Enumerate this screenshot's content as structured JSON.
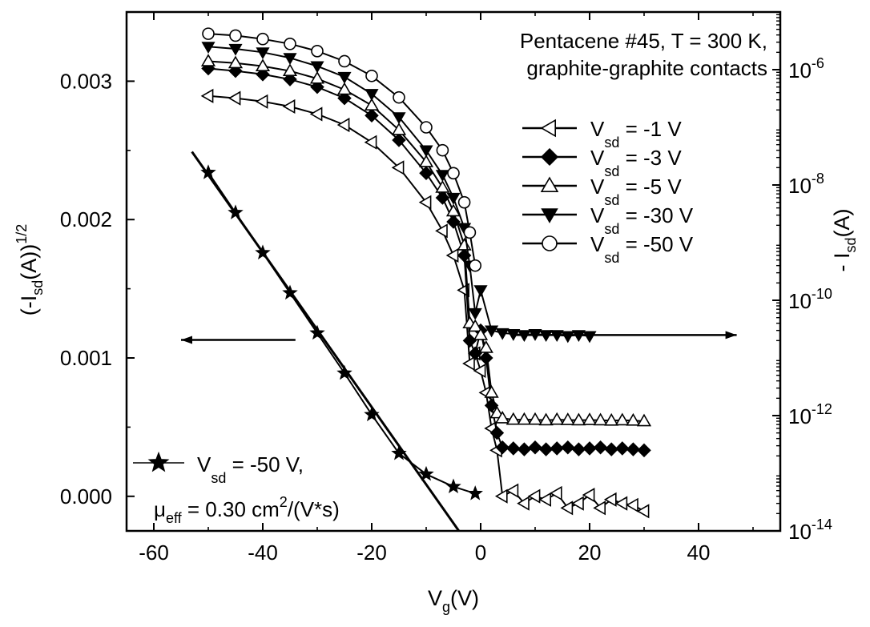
{
  "chart_data": {
    "type": "scatter",
    "annotation": [
      "Pentacene #45, T = 300 K,",
      "graphite-graphite contacts"
    ],
    "x_axis": {
      "label": "V",
      "label_sub": "g",
      "label_tail": "(V)",
      "range": [
        -65,
        55
      ],
      "ticks": [
        -60,
        -40,
        -20,
        0,
        20,
        40
      ],
      "tick_labels": [
        "-60",
        "-40",
        "-20",
        "0",
        "20",
        "40"
      ]
    },
    "y_left": {
      "label_pre": "(-I",
      "label_sub": "sd",
      "label_mid": "(A))",
      "label_sup": "1/2",
      "range": [
        -0.00025,
        0.0035
      ],
      "ticks": [
        0,
        0.001,
        0.002,
        0.003
      ],
      "tick_labels": [
        "0.000",
        "0.001",
        "0.002",
        "0.003"
      ]
    },
    "y_right": {
      "label_pre": "- I",
      "label_sub": "sd",
      "label_tail": "(A)",
      "scale": "log",
      "range_exp": [
        -14,
        -5
      ],
      "ticks_exp": [
        -14,
        -12,
        -10,
        -8,
        -6
      ],
      "tick_base": "10",
      "tick_exps": [
        "-14",
        "-12",
        "-10",
        "-8",
        "-6"
      ]
    },
    "legend_right": [
      {
        "pre": "V",
        "sub": "sd",
        "post": " = -1 V",
        "marker": "triangle-left-open"
      },
      {
        "pre": "V",
        "sub": "sd",
        "post": " = -3 V",
        "marker": "diamond-filled"
      },
      {
        "pre": "V",
        "sub": "sd",
        "post": " = -5 V",
        "marker": "triangle-up-open"
      },
      {
        "pre": "V",
        "sub": "sd",
        "post": " = -30 V",
        "marker": "triangle-down-filled"
      },
      {
        "pre": "V",
        "sub": "sd",
        "post": " = -50 V",
        "marker": "circle-open"
      }
    ],
    "legend_left": {
      "pre": "V",
      "sub": "sd",
      "post": " = -50 V,",
      "mu": "μ",
      "mu_sub": "eff",
      "mu_post": " = 0.30 cm",
      "mu_sup": "2",
      "mu_tail": "/(V*s)",
      "marker": "star-filled"
    },
    "arrows": [
      {
        "direction": "left",
        "axis": "left",
        "from": [
          -34,
          0.00113
        ],
        "to": [
          -55,
          0.00113
        ]
      },
      {
        "direction": "right",
        "axis": "right",
        "from": [
          6,
          2.5e-11
        ],
        "to": [
          47,
          2.5e-11
        ]
      }
    ],
    "fit_line": {
      "axis": "left",
      "x": [
        -53,
        -4
      ],
      "y": [
        0.00249,
        -0.00025
      ]
    },
    "series": [
      {
        "name": "V_sd = -50 V (sqrt)",
        "axis": "left",
        "marker": "star-filled",
        "connect": true,
        "x": [
          -50,
          -45,
          -40,
          -35,
          -30,
          -25,
          -20,
          -15,
          -10,
          -5,
          -1
        ],
        "y": [
          0.00234,
          0.00205,
          0.00176,
          0.00147,
          0.00118,
          0.00089,
          0.00059,
          0.00031,
          0.00016,
          7e-05,
          2e-05
        ]
      },
      {
        "name": "V_sd = -1 V",
        "axis": "right",
        "marker": "triangle-left-open",
        "connect": true,
        "x": [
          -50,
          -45,
          -40,
          -35,
          -30,
          -25,
          -20,
          -15,
          -10,
          -7,
          -5,
          -3,
          -2,
          -1,
          0,
          1,
          2,
          3,
          4,
          6,
          8,
          10,
          12,
          14,
          16,
          18,
          20,
          22,
          24,
          26,
          28,
          30
        ],
        "y": [
          3.5e-07,
          3.2e-07,
          2.8e-07,
          2.3e-07,
          1.7e-07,
          1.1e-07,
          5.5e-08,
          2e-08,
          5e-09,
          1.6e-09,
          6e-10,
          1.5e-10,
          8e-12,
          1.2e-11,
          6e-12,
          2.5e-12,
          6e-13,
          2.5e-13,
          4e-14,
          5e-14,
          3e-14,
          4e-14,
          3.5e-14,
          4.5e-14,
          2.5e-14,
          3e-14,
          4.2e-14,
          2.5e-14,
          3.5e-14,
          3e-14,
          2.8e-14,
          2.2e-14
        ]
      },
      {
        "name": "V_sd = -3 V",
        "axis": "right",
        "marker": "diamond-filled",
        "connect": true,
        "x": [
          -50,
          -45,
          -40,
          -35,
          -30,
          -25,
          -20,
          -15,
          -10,
          -7,
          -5,
          -3,
          -2,
          -1,
          0,
          1,
          2,
          3,
          4,
          6,
          8,
          10,
          12,
          14,
          16,
          18,
          20,
          22,
          24,
          26,
          28,
          30
        ],
        "y": [
          1.05e-06,
          9.5e-07,
          8.3e-07,
          6.8e-07,
          5e-07,
          3.2e-07,
          1.6e-07,
          6e-08,
          1.6e-08,
          6e-09,
          2.3e-09,
          6e-10,
          2e-11,
          1.2e-11,
          3e-11,
          1e-11,
          1.5e-12,
          5e-13,
          2.8e-13,
          2.7e-13,
          2.6e-13,
          2.8e-13,
          2.6e-13,
          2.7e-13,
          2.8e-13,
          2.6e-13,
          2.7e-13,
          2.8e-13,
          2.6e-13,
          2.7e-13,
          2.6e-13,
          2.5e-13
        ]
      },
      {
        "name": "V_sd = -5 V",
        "axis": "right",
        "marker": "triangle-up-open",
        "connect": true,
        "x": [
          -50,
          -45,
          -40,
          -35,
          -30,
          -25,
          -20,
          -15,
          -10,
          -7,
          -5,
          -3,
          -2,
          -1,
          0,
          1,
          2,
          3,
          4,
          6,
          8,
          10,
          12,
          14,
          16,
          18,
          20,
          22,
          24,
          26,
          28,
          30
        ],
        "y": [
          1.4e-06,
          1.3e-06,
          1.15e-06,
          9.5e-07,
          7e-07,
          4.5e-07,
          2.4e-07,
          9e-08,
          2.5e-08,
          9e-09,
          3.5e-09,
          9e-10,
          4e-11,
          3.5e-11,
          2.5e-11,
          1.5e-11,
          2.5e-12,
          1.1e-12,
          9e-13,
          8.5e-13,
          8.5e-13,
          8.5e-13,
          8.3e-13,
          8.5e-13,
          8.4e-13,
          8.3e-13,
          8.4e-13,
          8.3e-13,
          8.2e-13,
          8.3e-13,
          8.2e-13,
          8e-13
        ]
      },
      {
        "name": "V_sd = -30 V",
        "axis": "right",
        "marker": "triangle-down-filled",
        "connect": true,
        "x": [
          -50,
          -45,
          -40,
          -35,
          -30,
          -25,
          -20,
          -15,
          -10,
          -7,
          -5,
          -3,
          -2,
          -1,
          0,
          2,
          4,
          6,
          8,
          10,
          12,
          14,
          16,
          18,
          20
        ],
        "y": [
          2.5e-06,
          2.3e-06,
          2e-06,
          1.6e-06,
          1.15e-06,
          7.5e-07,
          3.8e-07,
          1.5e-07,
          4e-08,
          1.5e-08,
          6e-09,
          1.8e-09,
          4e-10,
          6e-11,
          1.5e-10,
          3e-11,
          2.7e-11,
          2.6e-11,
          2.5e-11,
          2.6e-11,
          2.5e-11,
          2.5e-11,
          2.4e-11,
          2.5e-11,
          2.4e-11
        ]
      },
      {
        "name": "V_sd = -50 V",
        "axis": "right",
        "marker": "circle-open",
        "connect": true,
        "x": [
          -50,
          -45,
          -40,
          -35,
          -30,
          -25,
          -20,
          -15,
          -10,
          -7,
          -5,
          -3,
          -2,
          -1
        ],
        "y": [
          4.2e-06,
          3.9e-06,
          3.4e-06,
          2.8e-06,
          2.1e-06,
          1.4e-06,
          7.8e-07,
          3.3e-07,
          1e-07,
          4e-08,
          1.6e-08,
          5e-09,
          1.5e-09,
          4e-10
        ]
      }
    ]
  }
}
